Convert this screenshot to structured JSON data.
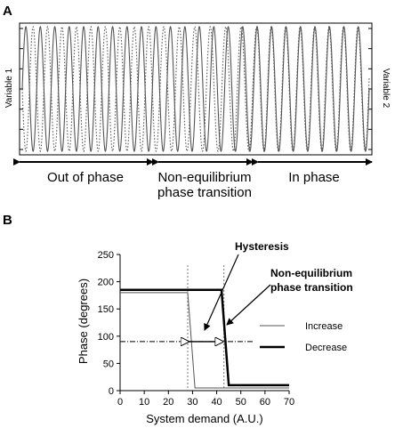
{
  "chart_data": [
    {
      "panel": "A",
      "type": "line",
      "panel_label": "A",
      "ylabel_left": "Variable 1",
      "ylabel_right": "Variable 2",
      "series": [
        {
          "name": "Variable 1",
          "style": "solid",
          "color": "#555555",
          "cycles": 24,
          "phase_pattern": [
            "out of phase",
            "gradual shift",
            "in phase"
          ]
        },
        {
          "name": "Variable 2",
          "style": "dotted",
          "color": "#555555",
          "cycles": 24
        }
      ],
      "regions": [
        "Out of phase",
        "Non-equilibrium",
        "phase transition",
        "In phase"
      ],
      "grid": false
    },
    {
      "panel": "B",
      "type": "line",
      "panel_label": "B",
      "xlabel": "System demand (A.U.)",
      "ylabel": "Phase (degrees)",
      "xlim": [
        0,
        70
      ],
      "ylim": [
        0,
        250
      ],
      "xticks": [
        "0",
        "10",
        "20",
        "30",
        "40",
        "50",
        "60",
        "70"
      ],
      "yticks": [
        "0",
        "50",
        "100",
        "150",
        "200",
        "250"
      ],
      "series": [
        {
          "name": "Increase",
          "color": "#555555",
          "width": "thin",
          "x": [
            0,
            28,
            31,
            70
          ],
          "y": [
            180,
            180,
            5,
            5
          ]
        },
        {
          "name": "Decrease",
          "color": "#000000",
          "width": "thick",
          "x": [
            0,
            42,
            45,
            70
          ],
          "y": [
            185,
            185,
            10,
            10
          ]
        }
      ],
      "reference_lines": {
        "horizontal_dashdot_y": 90,
        "horizontal_dashdot_x": [
          0,
          55
        ],
        "vertical_dotted_x": [
          28,
          43
        ]
      },
      "annotations": {
        "hysteresis": "Hysteresis",
        "transition_line1": "Non-equilibrium",
        "transition_line2": "phase transition"
      },
      "legend": {
        "placement": "right",
        "items": [
          "Increase",
          "Decrease"
        ]
      },
      "grid": false
    }
  ]
}
